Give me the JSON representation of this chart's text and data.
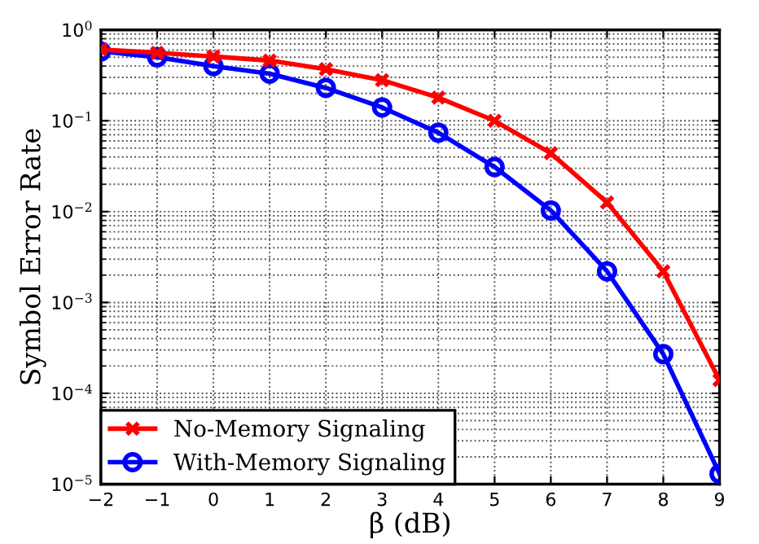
{
  "chart_data": {
    "type": "line",
    "xlabel": "β (dB)",
    "ylabel": "Symbol Error Rate",
    "x": [
      -2,
      -1,
      0,
      1,
      2,
      3,
      4,
      5,
      6,
      7,
      8,
      9
    ],
    "series": [
      {
        "name": "No-Memory Signaling",
        "color": "#ff0000",
        "marker": "cross",
        "values": [
          0.61,
          0.56,
          0.51,
          0.46,
          0.37,
          0.28,
          0.18,
          0.1,
          0.044,
          0.0126,
          0.0022,
          0.00014
        ]
      },
      {
        "name": "With-Memory Signaling",
        "color": "#0000ff",
        "marker": "circle",
        "values": [
          0.58,
          0.5,
          0.4,
          0.33,
          0.23,
          0.14,
          0.074,
          0.031,
          0.0103,
          0.0022,
          0.00027,
          1.3e-05
        ]
      }
    ],
    "log": "y",
    "xlim": [
      -2,
      9
    ],
    "ylim": [
      1e-05,
      1
    ],
    "xticks": [
      -2,
      -1,
      0,
      1,
      2,
      3,
      4,
      5,
      6,
      7,
      8,
      9
    ],
    "yticks": [
      {
        "value": 1e-05,
        "label": "10$^{−5}$"
      },
      {
        "value": 0.0001,
        "label": "10$^{−4}$"
      },
      {
        "value": 0.001,
        "label": "10$^{−3}$"
      },
      {
        "value": 0.01,
        "label": "10$^{−2}$"
      },
      {
        "value": 0.1,
        "label": "10$^{−1}$"
      },
      {
        "value": 1,
        "label": "10$^{0}$"
      }
    ],
    "grid": true,
    "legend": "bottom left",
    "line_style": "solid"
  }
}
